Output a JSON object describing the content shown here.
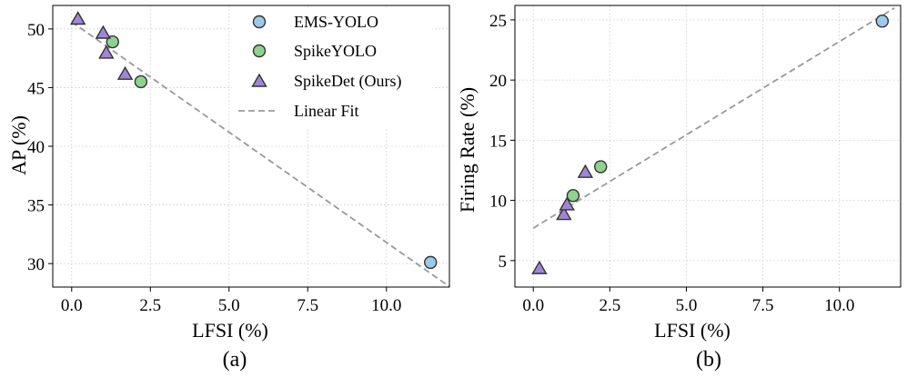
{
  "colors": {
    "ems": "#9ecae9",
    "spikeyolo": "#8fd18f",
    "spikedet": "#9f86d6",
    "fit": "#999999",
    "marker_edge": "#333333"
  },
  "legend": {
    "entries": [
      {
        "label": "EMS-YOLO",
        "series": "ems",
        "marker": "circle"
      },
      {
        "label": "SpikeYOLO",
        "series": "spikeyolo",
        "marker": "circle"
      },
      {
        "label": "SpikeDet (Ours)",
        "series": "spikedet",
        "marker": "triangle"
      },
      {
        "label": "Linear Fit",
        "series": "fit",
        "marker": "dashed-line"
      }
    ],
    "placement": "upper-right of panel (a)"
  },
  "chart_data": [
    {
      "type": "scatter",
      "caption": "(a)",
      "xlabel": "LFSI (%)",
      "ylabel": "AP (%)",
      "xlim": [
        -0.6,
        12.0
      ],
      "ylim": [
        28.0,
        52.0
      ],
      "xticks": [
        0.0,
        2.5,
        5.0,
        7.5,
        10.0
      ],
      "xtick_labels": [
        "0.0",
        "2.5",
        "5.0",
        "7.5",
        "10.0"
      ],
      "yticks": [
        30,
        35,
        40,
        45,
        50
      ],
      "ytick_labels": [
        "30",
        "35",
        "40",
        "45",
        "50"
      ],
      "grid": true,
      "series": [
        {
          "name": "EMS-YOLO",
          "key": "ems",
          "marker": "circle",
          "points": [
            [
              11.4,
              30.1
            ]
          ]
        },
        {
          "name": "SpikeYOLO",
          "key": "spikeyolo",
          "marker": "circle",
          "points": [
            [
              1.3,
              48.9
            ],
            [
              2.2,
              45.5
            ]
          ]
        },
        {
          "name": "SpikeDet (Ours)",
          "key": "spikedet",
          "marker": "triangle",
          "points": [
            [
              0.2,
              50.8
            ],
            [
              1.0,
              49.6
            ],
            [
              1.1,
              47.9
            ],
            [
              1.7,
              46.1
            ]
          ]
        }
      ],
      "fit": {
        "name": "Linear Fit",
        "x_range": [
          0.0,
          12.0
        ],
        "slope": -1.88,
        "intercept": 50.6
      }
    },
    {
      "type": "scatter",
      "caption": "(b)",
      "xlabel": "LFSI (%)",
      "ylabel": "Firing Rate (%)",
      "xlim": [
        -0.6,
        12.0
      ],
      "ylim": [
        2.8,
        26.2
      ],
      "xticks": [
        0.0,
        2.5,
        5.0,
        7.5,
        10.0
      ],
      "xtick_labels": [
        "0.0",
        "2.5",
        "5.0",
        "7.5",
        "10.0"
      ],
      "yticks": [
        5,
        10,
        15,
        20,
        25
      ],
      "ytick_labels": [
        "5",
        "10",
        "15",
        "20",
        "25"
      ],
      "grid": true,
      "series": [
        {
          "name": "EMS-YOLO",
          "key": "ems",
          "marker": "circle",
          "points": [
            [
              11.4,
              24.9
            ]
          ]
        },
        {
          "name": "SpikeYOLO",
          "key": "spikeyolo",
          "marker": "circle",
          "points": [
            [
              1.3,
              10.4
            ],
            [
              2.2,
              12.8
            ]
          ]
        },
        {
          "name": "SpikeDet (Ours)",
          "key": "spikedet",
          "marker": "triangle",
          "points": [
            [
              0.2,
              4.3
            ],
            [
              1.0,
              8.8
            ],
            [
              1.1,
              9.6
            ],
            [
              1.7,
              12.3
            ]
          ]
        }
      ],
      "fit": {
        "name": "Linear Fit",
        "x_range": [
          0.0,
          11.8
        ],
        "slope": 1.55,
        "intercept": 7.7
      }
    }
  ]
}
